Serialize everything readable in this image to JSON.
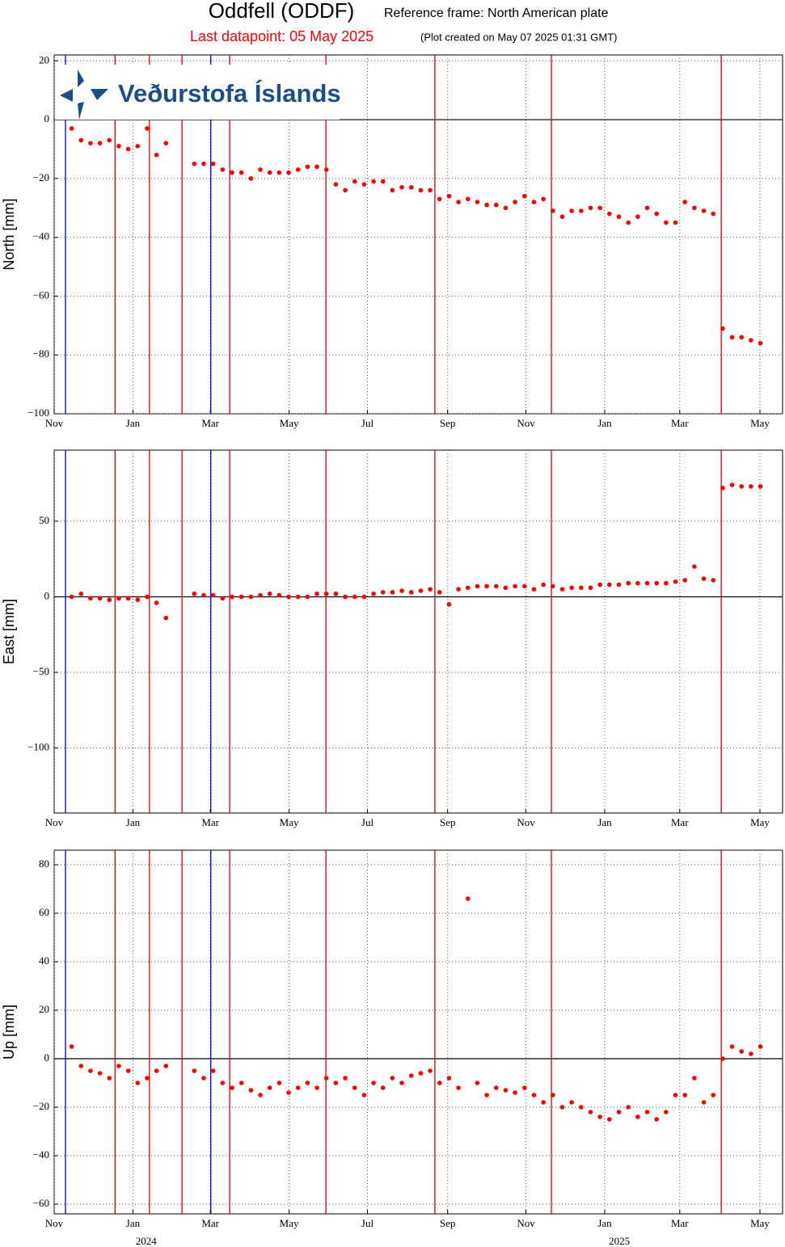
{
  "header": {
    "title": "Oddfell (ODDF)",
    "subtitle": "Reference frame: North American plate",
    "last_datapoint": "Last datapoint: 05 May 2025",
    "created": "(Plot created on May 07 2025 01:31 GMT)",
    "logo": "Veðurstofa Íslands"
  },
  "chart_data": [
    {
      "type": "scatter",
      "ylabel": "North [mm]",
      "color": "#ff0000",
      "grid": true,
      "zero_line": true,
      "xlim": [
        2023.833,
        2025.377
      ],
      "xticks": [
        {
          "value": 2023.833,
          "label": "Nov"
        },
        {
          "value": 2024.0,
          "label": "Jan"
        },
        {
          "value": 2024.164,
          "label": "Mar"
        },
        {
          "value": 2024.331,
          "label": "May"
        },
        {
          "value": 2024.497,
          "label": "Jul"
        },
        {
          "value": 2024.667,
          "label": "Sep"
        },
        {
          "value": 2024.833,
          "label": "Nov"
        },
        {
          "value": 2025.0,
          "label": "Jan"
        },
        {
          "value": 2025.159,
          "label": "Mar"
        },
        {
          "value": 2025.329,
          "label": "May"
        }
      ],
      "ylim": [
        -100,
        22
      ],
      "yticks": [
        {
          "value": 20,
          "label": "20"
        },
        {
          "value": 0,
          "label": "0"
        },
        {
          "value": -20,
          "label": "−20"
        },
        {
          "value": -40,
          "label": "−40"
        },
        {
          "value": -60,
          "label": "−60"
        },
        {
          "value": -80,
          "label": "−80"
        },
        {
          "value": -100,
          "label": "−100"
        }
      ],
      "vlines": [
        {
          "x": 2023.857,
          "color": "#0000cc"
        },
        {
          "x": 2024.165,
          "color": "#0000cc"
        },
        {
          "x": 2023.962,
          "color": "#dd0000"
        },
        {
          "x": 2024.035,
          "color": "#dd0000"
        },
        {
          "x": 2024.104,
          "color": "#dd0000"
        },
        {
          "x": 2024.205,
          "color": "#dd0000"
        },
        {
          "x": 2024.409,
          "color": "#dd0000"
        },
        {
          "x": 2024.64,
          "color": "#dd0000"
        },
        {
          "x": 2024.887,
          "color": "#dd0000"
        },
        {
          "x": 2025.247,
          "color": "#dd0000"
        }
      ],
      "x": [
        2023.87,
        2023.89,
        2023.91,
        2023.93,
        2023.95,
        2023.97,
        2023.99,
        2024.01,
        2024.03,
        2024.05,
        2024.07,
        2024.09,
        2024.11,
        2024.13,
        2024.15,
        2024.17,
        2024.19,
        2024.21,
        2024.23,
        2024.25,
        2024.27,
        2024.29,
        2024.31,
        2024.33,
        2024.35,
        2024.37,
        2024.39,
        2024.41,
        2024.43,
        2024.45,
        2024.47,
        2024.49,
        2024.51,
        2024.53,
        2024.55,
        2024.57,
        2024.59,
        2024.61,
        2024.63,
        2024.65,
        2024.67,
        2024.69,
        2024.71,
        2024.73,
        2024.75,
        2024.77,
        2024.79,
        2024.81,
        2024.83,
        2024.85,
        2024.87,
        2024.89,
        2024.91,
        2024.93,
        2024.95,
        2024.97,
        2024.99,
        2025.01,
        2025.03,
        2025.05,
        2025.07,
        2025.09,
        2025.11,
        2025.13,
        2025.15,
        2025.17,
        2025.19,
        2025.21,
        2025.23,
        2025.25,
        2025.27,
        2025.29,
        2025.31,
        2025.33
      ],
      "values": [
        -3,
        -7,
        -8,
        -8,
        -7,
        -9,
        -10,
        -9,
        -3,
        -12,
        -8,
        null,
        null,
        -15,
        -15,
        -15,
        -17,
        -18,
        -18,
        -20,
        -17,
        -18,
        -18,
        -18,
        -17,
        -16,
        -16,
        -17,
        -22,
        -24,
        -21,
        -22,
        -21,
        -21,
        -24,
        -23,
        -23,
        -24,
        -24,
        -27,
        -26,
        -28,
        -27,
        -28,
        -29,
        -29,
        -30,
        -28,
        -26,
        -28,
        -27,
        -31,
        -33,
        -31,
        -31,
        -30,
        -30,
        -32,
        -33,
        -35,
        -33,
        -30,
        -32,
        -35,
        -35,
        -28,
        -30,
        -31,
        -32,
        -71,
        -74,
        -74,
        -75,
        -76
      ]
    },
    {
      "type": "scatter",
      "ylabel": "East [mm]",
      "color": "#ff0000",
      "grid": true,
      "zero_line": true,
      "xlim": [
        2023.833,
        2025.377
      ],
      "xticks": [
        {
          "value": 2023.833,
          "label": "Nov"
        },
        {
          "value": 2024.0,
          "label": "Jan"
        },
        {
          "value": 2024.164,
          "label": "Mar"
        },
        {
          "value": 2024.331,
          "label": "May"
        },
        {
          "value": 2024.497,
          "label": "Jul"
        },
        {
          "value": 2024.667,
          "label": "Sep"
        },
        {
          "value": 2024.833,
          "label": "Nov"
        },
        {
          "value": 2025.0,
          "label": "Jan"
        },
        {
          "value": 2025.159,
          "label": "Mar"
        },
        {
          "value": 2025.329,
          "label": "May"
        }
      ],
      "ylim": [
        -143,
        97
      ],
      "yticks": [
        {
          "value": 50,
          "label": "50"
        },
        {
          "value": 0,
          "label": "0"
        },
        {
          "value": -50,
          "label": "−50"
        },
        {
          "value": -100,
          "label": "−100"
        }
      ],
      "vlines": [
        {
          "x": 2023.857,
          "color": "#0000cc"
        },
        {
          "x": 2024.165,
          "color": "#0000cc"
        },
        {
          "x": 2023.962,
          "color": "#dd0000"
        },
        {
          "x": 2024.035,
          "color": "#dd0000"
        },
        {
          "x": 2024.104,
          "color": "#dd0000"
        },
        {
          "x": 2024.205,
          "color": "#dd0000"
        },
        {
          "x": 2024.409,
          "color": "#dd0000"
        },
        {
          "x": 2024.64,
          "color": "#dd0000"
        },
        {
          "x": 2024.887,
          "color": "#dd0000"
        },
        {
          "x": 2025.247,
          "color": "#dd0000"
        }
      ],
      "x": [
        2023.87,
        2023.89,
        2023.91,
        2023.93,
        2023.95,
        2023.97,
        2023.99,
        2024.01,
        2024.03,
        2024.05,
        2024.07,
        2024.09,
        2024.11,
        2024.13,
        2024.15,
        2024.17,
        2024.19,
        2024.21,
        2024.23,
        2024.25,
        2024.27,
        2024.29,
        2024.31,
        2024.33,
        2024.35,
        2024.37,
        2024.39,
        2024.41,
        2024.43,
        2024.45,
        2024.47,
        2024.49,
        2024.51,
        2024.53,
        2024.55,
        2024.57,
        2024.59,
        2024.61,
        2024.63,
        2024.65,
        2024.67,
        2024.69,
        2024.71,
        2024.73,
        2024.75,
        2024.77,
        2024.79,
        2024.81,
        2024.83,
        2024.85,
        2024.87,
        2024.89,
        2024.91,
        2024.93,
        2024.95,
        2024.97,
        2024.99,
        2025.01,
        2025.03,
        2025.05,
        2025.07,
        2025.09,
        2025.11,
        2025.13,
        2025.15,
        2025.17,
        2025.19,
        2025.21,
        2025.23,
        2025.25,
        2025.27,
        2025.29,
        2025.31,
        2025.33
      ],
      "values": [
        0,
        2,
        -1,
        -1,
        -2,
        -1,
        -1,
        -2,
        0,
        -4,
        -14,
        null,
        null,
        2,
        1,
        1,
        -1,
        0,
        0,
        0,
        1,
        2,
        1,
        0,
        0,
        0,
        2,
        2,
        2,
        0,
        0,
        0,
        2,
        3,
        3,
        4,
        3,
        4,
        5,
        3,
        -5,
        5,
        6,
        7,
        7,
        7,
        6,
        7,
        7,
        5,
        8,
        7,
        5,
        6,
        6,
        6,
        8,
        8,
        8,
        9,
        9,
        9,
        9,
        9,
        10,
        11,
        20,
        12,
        11,
        72,
        74,
        73,
        73,
        73
      ]
    },
    {
      "type": "scatter",
      "ylabel": "Up [mm]",
      "color": "#ff0000",
      "grid": true,
      "zero_line": true,
      "xlim": [
        2023.833,
        2025.377
      ],
      "xticks": [
        {
          "value": 2023.833,
          "label": "Nov"
        },
        {
          "value": 2024.0,
          "label": "Jan"
        },
        {
          "value": 2024.164,
          "label": "Mar"
        },
        {
          "value": 2024.331,
          "label": "May"
        },
        {
          "value": 2024.497,
          "label": "Jul"
        },
        {
          "value": 2024.667,
          "label": "Sep"
        },
        {
          "value": 2024.833,
          "label": "Nov"
        },
        {
          "value": 2025.0,
          "label": "Jan"
        },
        {
          "value": 2025.159,
          "label": "Mar"
        },
        {
          "value": 2025.329,
          "label": "May"
        }
      ],
      "year_labels": [
        {
          "value": 2024.028,
          "label": "2024"
        },
        {
          "value": 2025.031,
          "label": "2025"
        }
      ],
      "ylim": [
        -64,
        86
      ],
      "yticks": [
        {
          "value": 80,
          "label": "80"
        },
        {
          "value": 60,
          "label": "60"
        },
        {
          "value": 40,
          "label": "40"
        },
        {
          "value": 20,
          "label": "20"
        },
        {
          "value": 0,
          "label": "0"
        },
        {
          "value": -20,
          "label": "−20"
        },
        {
          "value": -40,
          "label": "−40"
        },
        {
          "value": -60,
          "label": "−60"
        }
      ],
      "vlines": [
        {
          "x": 2023.857,
          "color": "#0000cc"
        },
        {
          "x": 2024.165,
          "color": "#0000cc"
        },
        {
          "x": 2023.962,
          "color": "#dd0000"
        },
        {
          "x": 2024.035,
          "color": "#dd0000"
        },
        {
          "x": 2024.104,
          "color": "#dd0000"
        },
        {
          "x": 2024.205,
          "color": "#dd0000"
        },
        {
          "x": 2024.409,
          "color": "#dd0000"
        },
        {
          "x": 2024.64,
          "color": "#dd0000"
        },
        {
          "x": 2024.887,
          "color": "#dd0000"
        },
        {
          "x": 2025.247,
          "color": "#dd0000"
        }
      ],
      "x": [
        2023.87,
        2023.89,
        2023.91,
        2023.93,
        2023.95,
        2023.97,
        2023.99,
        2024.01,
        2024.03,
        2024.05,
        2024.07,
        2024.09,
        2024.11,
        2024.13,
        2024.15,
        2024.17,
        2024.19,
        2024.21,
        2024.23,
        2024.25,
        2024.27,
        2024.29,
        2024.31,
        2024.33,
        2024.35,
        2024.37,
        2024.39,
        2024.41,
        2024.43,
        2024.45,
        2024.47,
        2024.49,
        2024.51,
        2024.53,
        2024.55,
        2024.57,
        2024.59,
        2024.61,
        2024.63,
        2024.65,
        2024.67,
        2024.69,
        2024.71,
        2024.73,
        2024.75,
        2024.77,
        2024.79,
        2024.81,
        2024.83,
        2024.85,
        2024.87,
        2024.89,
        2024.91,
        2024.93,
        2024.95,
        2024.97,
        2024.99,
        2025.01,
        2025.03,
        2025.05,
        2025.07,
        2025.09,
        2025.11,
        2025.13,
        2025.15,
        2025.17,
        2025.19,
        2025.21,
        2025.23,
        2025.25,
        2025.27,
        2025.29,
        2025.31,
        2025.33
      ],
      "values": [
        5,
        -3,
        -5,
        -6,
        -8,
        -3,
        -5,
        -10,
        -8,
        -5,
        -3,
        null,
        null,
        -5,
        -8,
        -5,
        -10,
        -12,
        -10,
        -13,
        -15,
        -12,
        -10,
        -14,
        -12,
        -10,
        -12,
        -8,
        -10,
        -8,
        -12,
        -15,
        -10,
        -12,
        -8,
        -10,
        -7,
        -6,
        -5,
        -10,
        -8,
        -12,
        66,
        -10,
        -15,
        -12,
        -13,
        -14,
        -12,
        -15,
        -18,
        -15,
        -20,
        -18,
        -20,
        -22,
        -24,
        -25,
        -22,
        -20,
        -24,
        -22,
        -25,
        -22,
        -15,
        -15,
        -8,
        -18,
        -15,
        0,
        5,
        3,
        2,
        5
      ]
    }
  ]
}
